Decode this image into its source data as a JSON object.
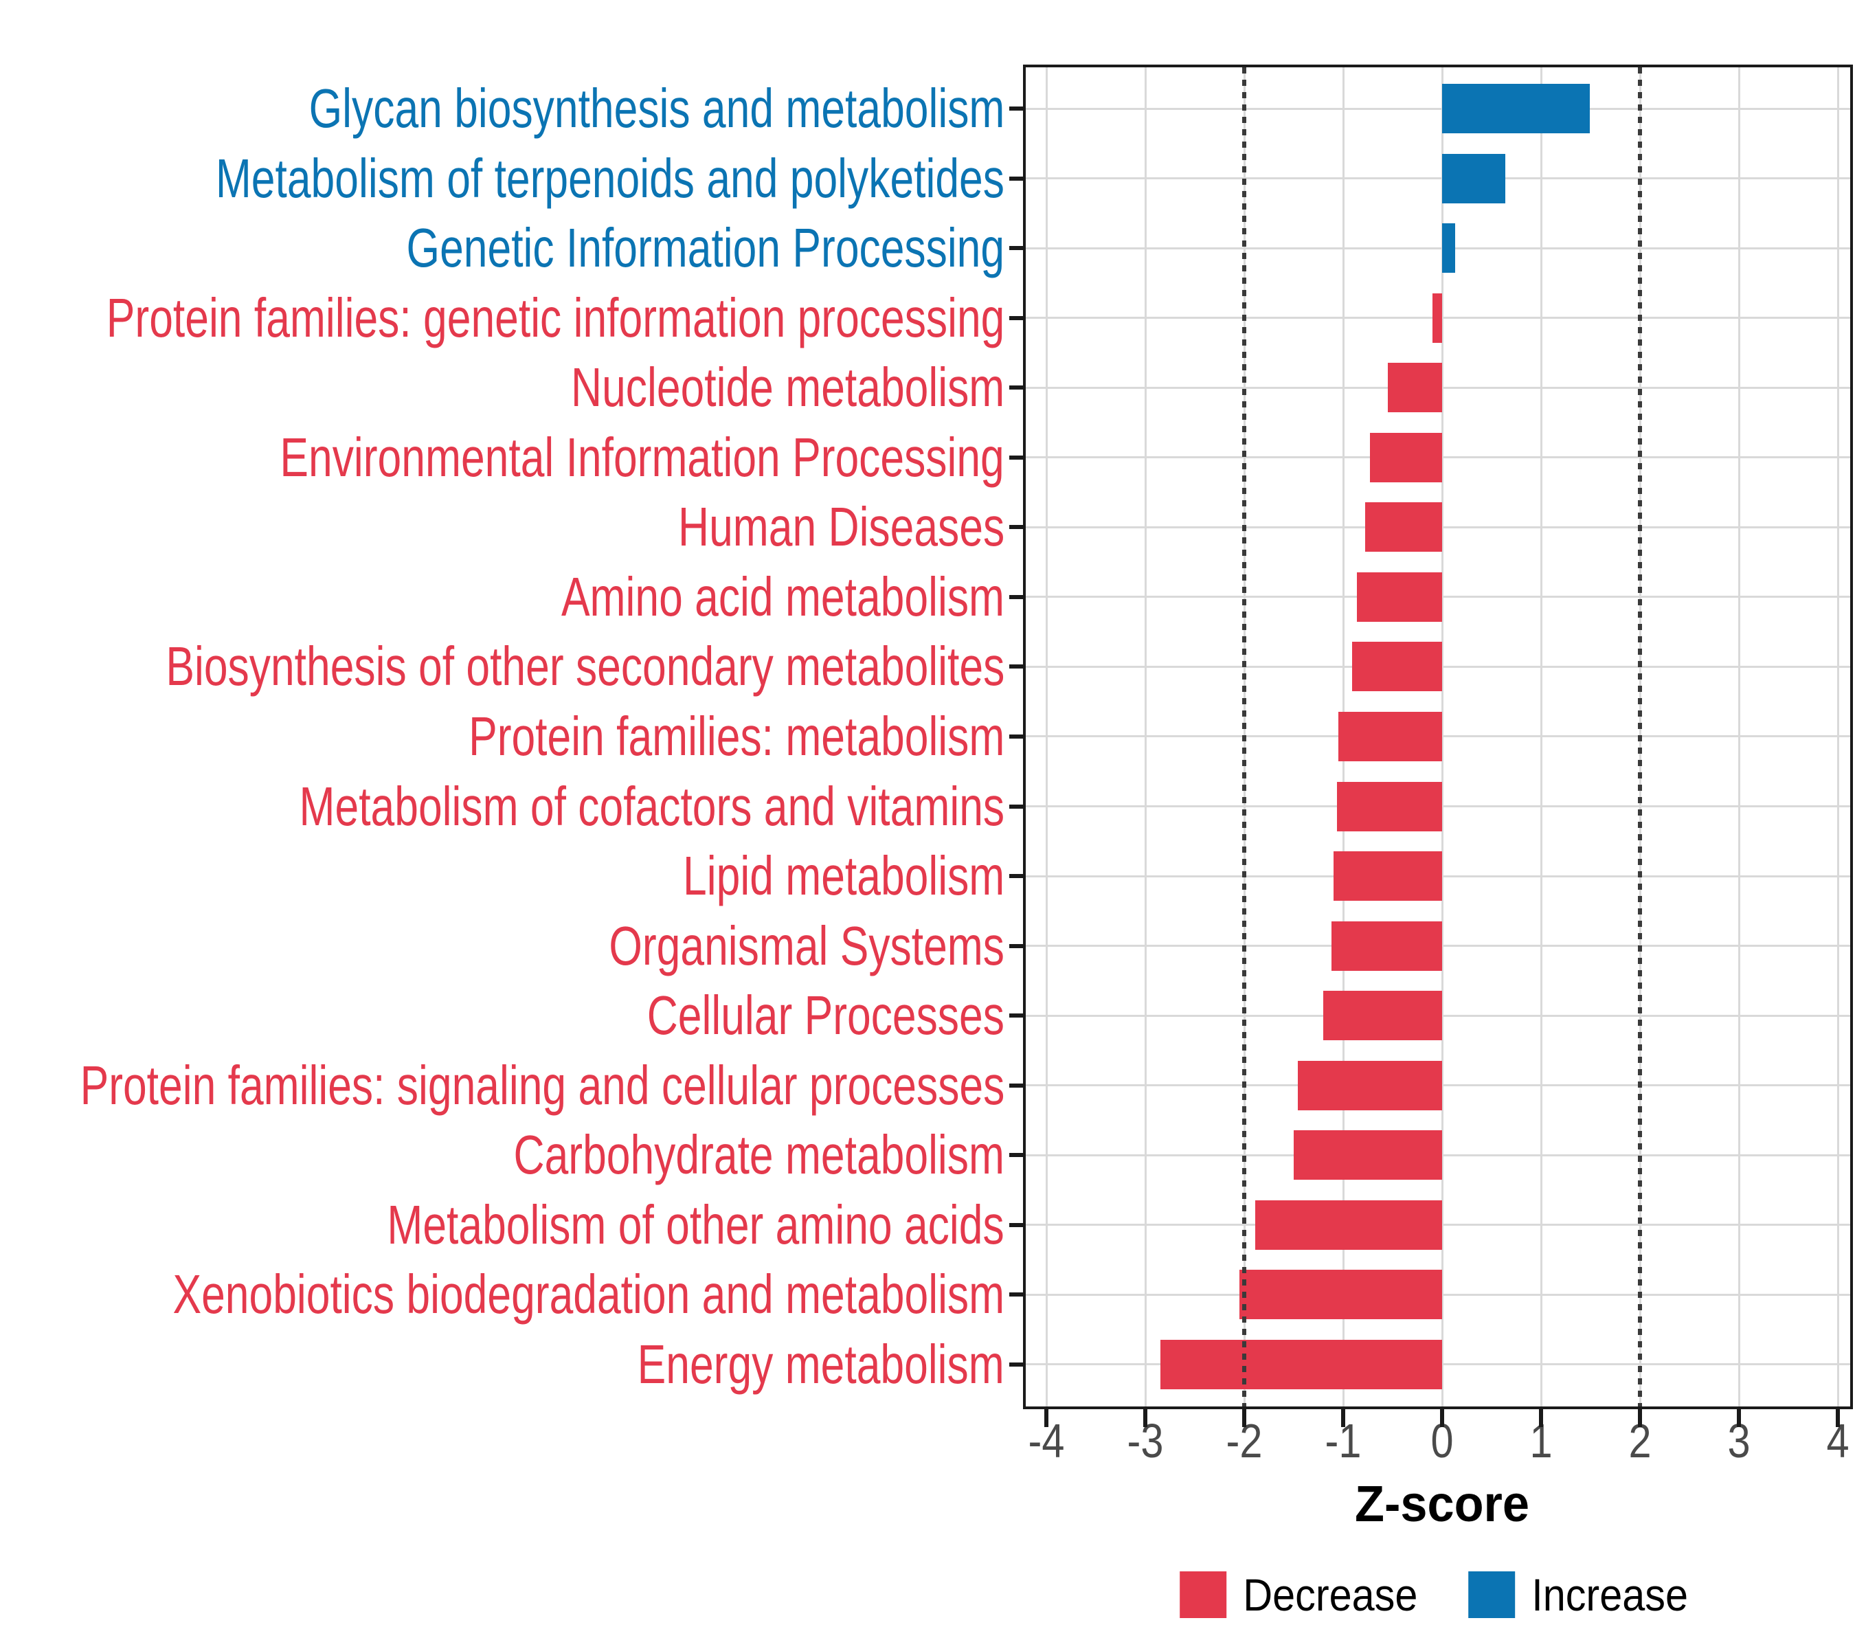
{
  "chart_data": {
    "type": "bar",
    "orientation": "horizontal",
    "title": "",
    "xlabel": "Z-score",
    "xlim": [
      -4,
      4
    ],
    "x_ticks": [
      -4,
      -3,
      -2,
      -1,
      0,
      1,
      2,
      3,
      4
    ],
    "reference_lines": [
      -2,
      2
    ],
    "grid": "major gridlines only, light gray; panel fully framed in black",
    "legend_position": "bottom-center",
    "categories": [
      "Glycan biosynthesis and metabolism",
      "Metabolism of terpenoids and polyketides",
      "Genetic Information Processing",
      "Protein families: genetic information processing",
      "Nucleotide metabolism",
      "Environmental Information Processing",
      "Human Diseases",
      "Amino acid metabolism",
      "Biosynthesis of other secondary metabolites",
      "Protein families: metabolism",
      "Metabolism of cofactors and vitamins",
      "Lipid metabolism",
      "Organismal Systems",
      "Cellular Processes",
      "Protein families: signaling and cellular processes",
      "Carbohydrate metabolism",
      "Metabolism of other amino acids",
      "Xenobiotics biodegradation and metabolism",
      "Energy metabolism"
    ],
    "values": [
      1.49,
      0.64,
      0.13,
      -0.1,
      -0.55,
      -0.73,
      -0.78,
      -0.86,
      -0.91,
      -1.05,
      -1.06,
      -1.1,
      -1.12,
      -1.2,
      -1.46,
      -1.5,
      -1.89,
      -2.05,
      -2.85
    ],
    "directions": [
      "Increase",
      "Increase",
      "Increase",
      "Decrease",
      "Decrease",
      "Decrease",
      "Decrease",
      "Decrease",
      "Decrease",
      "Decrease",
      "Decrease",
      "Decrease",
      "Decrease",
      "Decrease",
      "Decrease",
      "Decrease",
      "Decrease",
      "Decrease",
      "Decrease"
    ],
    "legend": [
      {
        "label": "Decrease",
        "color": "#E4394C"
      },
      {
        "label": "Increase",
        "color": "#0B74B3"
      }
    ],
    "colors": {
      "decrease": "#E4394C",
      "increase": "#0B74B3",
      "grid": "#D9D9D9",
      "axis_text": "#4A4A4A",
      "border": "#1A1A1A",
      "refline": "#3A3A3A"
    }
  }
}
